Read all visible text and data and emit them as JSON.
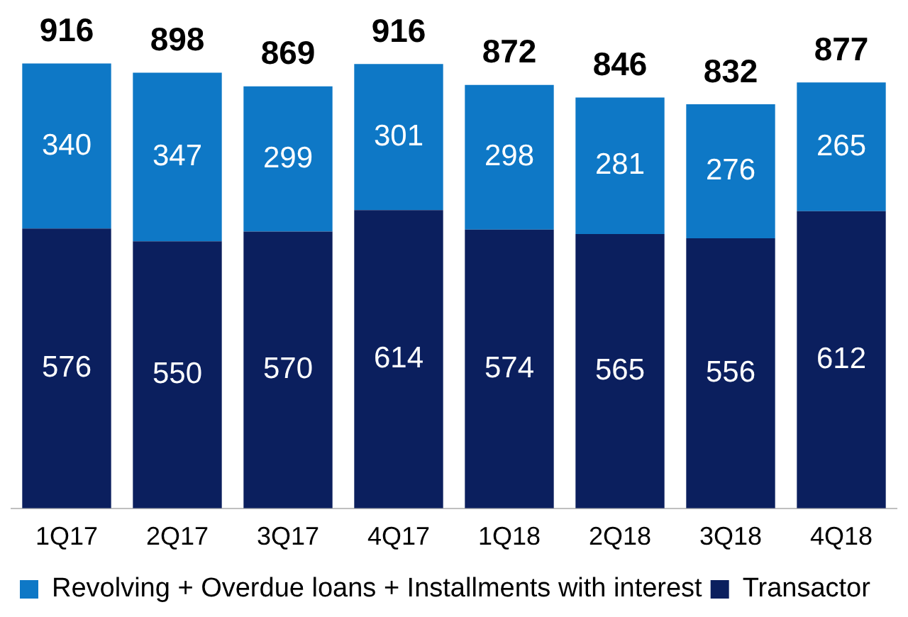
{
  "chart_data": {
    "type": "bar",
    "stacked": true,
    "categories": [
      "1Q17",
      "2Q17",
      "3Q17",
      "4Q17",
      "1Q18",
      "2Q18",
      "3Q18",
      "4Q18"
    ],
    "series": [
      {
        "name": "Transactor",
        "color": "#0b1f5e",
        "values": [
          576,
          550,
          570,
          614,
          574,
          565,
          556,
          612
        ]
      },
      {
        "name": "Revolving + Overdue loans + Installments with interest",
        "color": "#0e78c6",
        "values": [
          340,
          347,
          299,
          301,
          298,
          281,
          276,
          265
        ]
      }
    ],
    "totals": [
      "916",
      "898",
      "869",
      "916",
      "872",
      "846",
      "832",
      "877"
    ],
    "data_labels": true,
    "grid": false,
    "legend": "bottom left"
  }
}
